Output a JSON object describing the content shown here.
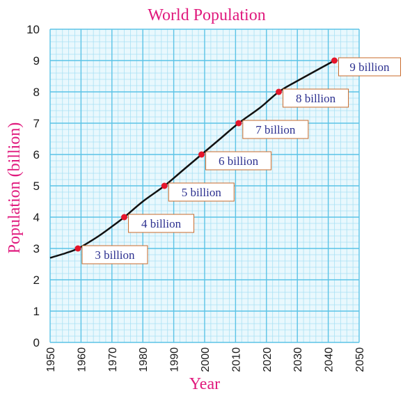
{
  "chart_data": {
    "type": "line",
    "title": "World Population",
    "xlabel": "Year",
    "ylabel": "Population (billion)",
    "xlim": [
      1950,
      2050
    ],
    "ylim": [
      0,
      10
    ],
    "x_ticks": [
      "1950",
      "1960",
      "1970",
      "1980",
      "1990",
      "2000",
      "2010",
      "2020",
      "2030",
      "2040",
      "2050"
    ],
    "y_ticks": [
      "0",
      "1",
      "2",
      "3",
      "4",
      "5",
      "6",
      "7",
      "8",
      "9",
      "10"
    ],
    "grid": true,
    "series": [
      {
        "color": "#111111",
        "x": [
          1950,
          1955,
          1959,
          1965,
          1970,
          1974,
          1980,
          1987,
          1993,
          1999,
          2005,
          2011,
          2018,
          2024,
          2030,
          2042
        ],
        "values": [
          2.7,
          2.85,
          3.0,
          3.35,
          3.7,
          4.0,
          4.5,
          5.0,
          5.5,
          6.0,
          6.5,
          7.0,
          7.5,
          8.0,
          8.35,
          9.0
        ]
      }
    ],
    "milestones": [
      {
        "x": 1959,
        "y": 3,
        "label": "3 billion"
      },
      {
        "x": 1974,
        "y": 4,
        "label": "4 billion"
      },
      {
        "x": 1987,
        "y": 5,
        "label": "5 billion"
      },
      {
        "x": 1999,
        "y": 6,
        "label": "6 billion"
      },
      {
        "x": 2011,
        "y": 7,
        "label": "7 billion"
      },
      {
        "x": 2024,
        "y": 8,
        "label": "8 billion"
      },
      {
        "x": 2042,
        "y": 9,
        "label": "9 billion"
      }
    ],
    "colors": {
      "grid_major": "#5bc3e6",
      "grid_minor": "#a9e1f3",
      "background": "#e9f8fd",
      "marker": "#e5162b",
      "title": "#e0197d",
      "annotation_text": "#2b2f8f",
      "annotation_border": "#c86a2a"
    }
  }
}
